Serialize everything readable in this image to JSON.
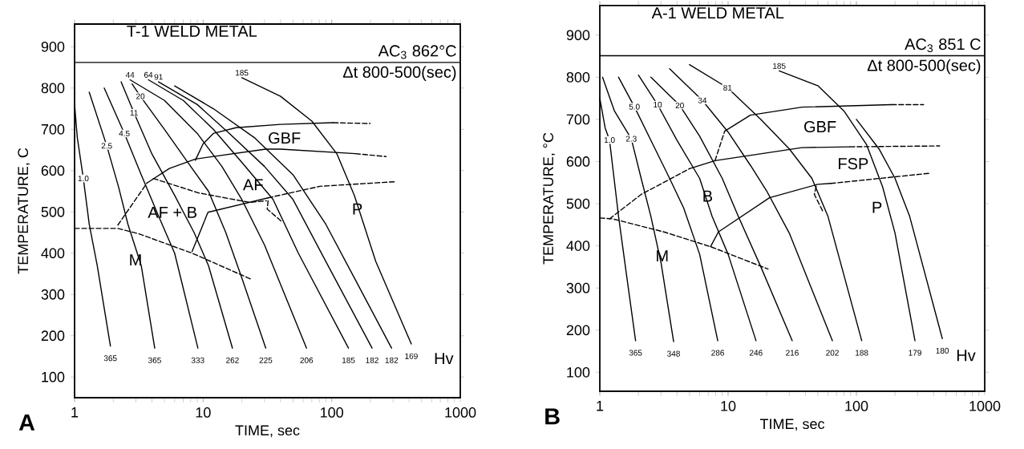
{
  "chart_data": [
    {
      "type": "line",
      "title": "T-1 WELD METAL",
      "xlabel": "TIME, sec",
      "ylabel": "TEMPERATURE, C",
      "log": "x",
      "xlim": [
        1,
        1000
      ],
      "ylim": [
        50,
        955
      ],
      "xticks": [
        1,
        10,
        100,
        1000
      ],
      "yticks": [
        100,
        200,
        300,
        400,
        500,
        600,
        700,
        800,
        900
      ],
      "ref_lines": [
        {
          "axis": "y",
          "value": 862,
          "label": "AC$_{3}$ 862°C"
        }
      ],
      "series": [
        {
          "color": "#000000",
          "line_style": "solid",
          "x": [
            1.0,
            1.05,
            1.17,
            1.3,
            1.5,
            1.9
          ],
          "values": [
            760,
            680,
            581,
            470,
            370,
            175
          ]
        },
        {
          "color": "#000000",
          "line_style": "solid",
          "x": [
            1.3,
            1.78,
            2.2,
            2.6,
            3.3,
            4.2
          ],
          "values": [
            790,
            660,
            560,
            470,
            370,
            170
          ]
        },
        {
          "color": "#000000",
          "line_style": "solid",
          "x": [
            1.7,
            2.44,
            3.3,
            4.5,
            6,
            9.1
          ],
          "values": [
            800,
            690,
            590,
            490,
            400,
            170
          ]
        },
        {
          "color": "#000000",
          "line_style": "solid",
          "x": [
            2.3,
            2.9,
            4,
            6,
            8.5,
            11,
            16.9
          ],
          "values": [
            815,
            740,
            640,
            540,
            450,
            370,
            170
          ]
        },
        {
          "color": "#000000",
          "line_style": "solid",
          "x": [
            2.8,
            3.25,
            5,
            8,
            11,
            15,
            20,
            30.7
          ],
          "values": [
            810,
            780,
            700,
            610,
            550,
            450,
            340,
            170
          ]
        },
        {
          "color": "#000000",
          "line_style": "solid",
          "x": [
            2.7,
            5,
            9,
            14,
            20,
            30,
            63.7
          ],
          "values": [
            820,
            770,
            690,
            610,
            530,
            420,
            170
          ]
        },
        {
          "color": "#000000",
          "line_style": "solid",
          "x": [
            3.75,
            7,
            12,
            20,
            35,
            55,
            135
          ],
          "values": [
            820,
            770,
            700,
            620,
            530,
            400,
            170
          ]
        },
        {
          "color": "#000000",
          "line_style": "solid",
          "x": [
            4.5,
            9,
            16,
            30,
            50,
            90,
            206
          ],
          "values": [
            815,
            760,
            690,
            610,
            530,
            380,
            170
          ]
        },
        {
          "color": "#000000",
          "line_style": "solid",
          "x": [
            6,
            12,
            25,
            50,
            90,
            150,
            292
          ],
          "values": [
            805,
            750,
            680,
            590,
            470,
            340,
            170
          ]
        },
        {
          "color": "#000000",
          "line_style": "solid",
          "x": [
            20,
            40,
            70,
            110,
            150,
            220,
            416
          ],
          "values": [
            825,
            780,
            720,
            640,
            540,
            380,
            180
          ]
        },
        {
          "color": "#000000",
          "line_style": "solid",
          "x": [
            8.7,
            10,
            12,
            18,
            40,
            103
          ],
          "values": [
            625,
            665,
            690,
            704,
            712,
            716
          ]
        },
        {
          "color": "#000000",
          "line_style": "dashed",
          "x": [
            103,
            199
          ],
          "values": [
            716,
            714
          ]
        },
        {
          "color": "#000000",
          "line_style": "dashed",
          "x": [
            2.17,
            3.66
          ],
          "values": [
            468,
            570
          ]
        },
        {
          "color": "#000000",
          "line_style": "solid",
          "x": [
            3.66,
            5.46,
            8.7,
            30.7,
            40,
            153
          ],
          "values": [
            570,
            605,
            628,
            652,
            652,
            641
          ]
        },
        {
          "color": "#000000",
          "line_style": "dashed",
          "x": [
            153,
            265
          ],
          "values": [
            641,
            634
          ]
        },
        {
          "color": "#000000",
          "line_style": "dashed",
          "x": [
            4.1,
            9.2,
            23,
            31
          ],
          "values": [
            581,
            546,
            523,
            527
          ]
        },
        {
          "color": "#000000",
          "line_style": "solid",
          "x": [
            8.2,
            10.9,
            32
          ],
          "values": [
            404,
            499,
            534
          ]
        },
        {
          "color": "#000000",
          "line_style": "dashed",
          "x": [
            32,
            81,
            307
          ],
          "values": [
            534,
            562,
            573
          ]
        },
        {
          "color": "#000000",
          "line_style": "dashed",
          "x": [
            32,
            31.5,
            41
          ],
          "values": [
            527,
            507,
            476
          ]
        },
        {
          "color": "#000000",
          "line_style": "dashed",
          "x": [
            1,
            2.17,
            3.16,
            8.2,
            23.6
          ],
          "values": [
            460,
            460,
            447,
            400,
            337
          ]
        }
      ],
      "annotations": [
        "Δt 800-500(sec)",
        "A",
        "Hv",
        "GBF",
        "AF",
        "AF + B",
        "P",
        "M",
        {
          "text": "1.0",
          "x": 1.17,
          "y": 581
        },
        {
          "text": "2.5",
          "x": 1.78,
          "y": 660
        },
        {
          "text": "4.5",
          "x": 2.44,
          "y": 690
        },
        {
          "text": "11",
          "x": 2.9,
          "y": 740
        },
        {
          "text": "20",
          "x": 3.25,
          "y": 780
        },
        {
          "text": "44",
          "x": 2.7,
          "y": 820
        },
        {
          "text": "64",
          "x": 3.75,
          "y": 820
        },
        {
          "text": "91",
          "x": 4.5,
          "y": 815
        },
        {
          "text": "185",
          "x": 20,
          "y": 825
        },
        {
          "text": "365",
          "x": 1.9,
          "y": 175
        },
        {
          "text": "365",
          "x": 4.2,
          "y": 170
        },
        {
          "text": "333",
          "x": 9.1,
          "y": 170
        },
        {
          "text": "262",
          "x": 16.9,
          "y": 170
        },
        {
          "text": "225",
          "x": 30.7,
          "y": 170
        },
        {
          "text": "206",
          "x": 63.7,
          "y": 170
        },
        {
          "text": "185",
          "x": 135,
          "y": 170
        },
        {
          "text": "182",
          "x": 206,
          "y": 170
        },
        {
          "text": "182",
          "x": 292,
          "y": 170
        },
        {
          "text": "169",
          "x": 416,
          "y": 180
        }
      ]
    },
    {
      "type": "line",
      "title": "A-1 WELD METAL",
      "xlabel": "TIME, sec",
      "ylabel": "TEMPERATURE, °C",
      "log": "x",
      "xlim": [
        1,
        1000
      ],
      "ylim": [
        55,
        970
      ],
      "xticks": [
        1,
        10,
        100,
        1000
      ],
      "yticks": [
        100,
        200,
        300,
        400,
        500,
        600,
        700,
        800,
        900
      ],
      "ref_lines": [
        {
          "axis": "y",
          "value": 851,
          "label": "AC$_{3}$ 851 C"
        }
      ],
      "series": [
        {
          "color": "#000000",
          "line_style": "solid",
          "x": [
            1.0,
            1.1,
            1.19,
            1.4,
            1.6,
            1.9
          ],
          "values": [
            750,
            680,
            651,
            470,
            340,
            175
          ]
        },
        {
          "color": "#000000",
          "line_style": "solid",
          "x": [
            1.05,
            1.3,
            1.76,
            2.1,
            2.5,
            3.0,
            3.76
          ],
          "values": [
            800,
            720,
            654,
            560,
            470,
            360,
            173
          ]
        },
        {
          "color": "#000000",
          "line_style": "solid",
          "x": [
            1.4,
            1.86,
            2.6,
            3.5,
            4.5,
            6,
            8.3
          ],
          "values": [
            800,
            730,
            640,
            560,
            490,
            380,
            175
          ]
        },
        {
          "color": "#000000",
          "line_style": "solid",
          "x": [
            2.0,
            2.82,
            4,
            6,
            7.5,
            10,
            16.5
          ],
          "values": [
            805,
            735,
            650,
            560,
            470,
            380,
            175
          ]
        },
        {
          "color": "#000000",
          "line_style": "solid",
          "x": [
            2.5,
            4.2,
            6,
            9,
            12,
            18,
            31.6
          ],
          "values": [
            800,
            733,
            660,
            560,
            470,
            350,
            175
          ]
        },
        {
          "color": "#000000",
          "line_style": "solid",
          "x": [
            3.5,
            6.3,
            10,
            15,
            20,
            30,
            65
          ],
          "values": [
            820,
            745,
            670,
            590,
            530,
            430,
            175
          ]
        },
        {
          "color": "#000000",
          "line_style": "solid",
          "x": [
            5,
            9.9,
            18,
            30,
            45,
            60,
            110
          ],
          "values": [
            830,
            775,
            700,
            630,
            560,
            470,
            175
          ]
        },
        {
          "color": "#000000",
          "line_style": "solid",
          "x": [
            25,
            50,
            80,
            120,
            160,
            200,
            286
          ],
          "values": [
            815,
            780,
            720,
            640,
            540,
            430,
            175
          ]
        },
        {
          "color": "#000000",
          "line_style": "solid",
          "x": [
            100,
            150,
            200,
            260,
            467
          ],
          "values": [
            700,
            630,
            560,
            470,
            180
          ]
        },
        {
          "color": "#000000",
          "line_style": "dashed",
          "x": [
            7.9,
            9.4
          ],
          "values": [
            602,
            672
          ]
        },
        {
          "color": "#000000",
          "line_style": "solid",
          "x": [
            9.4,
            14.9,
            37.6,
            188
          ],
          "values": [
            672,
            710,
            729,
            735
          ]
        },
        {
          "color": "#000000",
          "line_style": "dashed",
          "x": [
            188,
            334
          ],
          "values": [
            735,
            735
          ]
        },
        {
          "color": "#000000",
          "line_style": "dashed",
          "x": [
            1.19,
            2.1,
            5
          ],
          "values": [
            464,
            522,
            583
          ]
        },
        {
          "color": "#000000",
          "line_style": "solid",
          "x": [
            5,
            7.9,
            37.6,
            89
          ],
          "values": [
            583,
            602,
            633,
            635
          ]
        },
        {
          "color": "#000000",
          "line_style": "dashed",
          "x": [
            89,
            445
          ],
          "values": [
            635,
            637
          ]
        },
        {
          "color": "#000000",
          "line_style": "solid",
          "x": [
            7.3,
            8.4,
            21,
            50,
            63
          ],
          "values": [
            398,
            433,
            514,
            546,
            548
          ]
        },
        {
          "color": "#000000",
          "line_style": "dashed",
          "x": [
            63,
            366
          ],
          "values": [
            548,
            572
          ]
        },
        {
          "color": "#000000",
          "line_style": "dashed",
          "x": [
            48.6,
            47,
            54.5
          ],
          "values": [
            541,
            522,
            483
          ]
        },
        {
          "color": "#000000",
          "line_style": "dashed",
          "x": [
            1,
            1.26,
            3.16,
            7.3,
            20.5
          ],
          "values": [
            466,
            464,
            433,
            398,
            345
          ]
        }
      ],
      "annotations": [
        "Δt 800-500(sec)",
        "B",
        "Hv",
        "GBF",
        "FSP",
        "B",
        "P",
        "M",
        {
          "text": "1.0",
          "x": 1.19,
          "y": 651
        },
        {
          "text": "2.3",
          "x": 1.76,
          "y": 654
        },
        {
          "text": "5.0",
          "x": 1.86,
          "y": 730
        },
        {
          "text": "10",
          "x": 2.82,
          "y": 735
        },
        {
          "text": "20",
          "x": 4.2,
          "y": 733
        },
        {
          "text": "34",
          "x": 6.3,
          "y": 745
        },
        {
          "text": "81",
          "x": 9.9,
          "y": 775
        },
        {
          "text": "185",
          "x": 25,
          "y": 815
        },
        {
          "text": "365",
          "x": 1.9,
          "y": 175
        },
        {
          "text": "348",
          "x": 3.76,
          "y": 173
        },
        {
          "text": "286",
          "x": 8.3,
          "y": 175
        },
        {
          "text": "246",
          "x": 16.5,
          "y": 175
        },
        {
          "text": "216",
          "x": 31.6,
          "y": 175
        },
        {
          "text": "202",
          "x": 65,
          "y": 175
        },
        {
          "text": "188",
          "x": 110,
          "y": 175
        },
        {
          "text": "179",
          "x": 286,
          "y": 175
        },
        {
          "text": "180",
          "x": 467,
          "y": 180
        }
      ]
    }
  ]
}
